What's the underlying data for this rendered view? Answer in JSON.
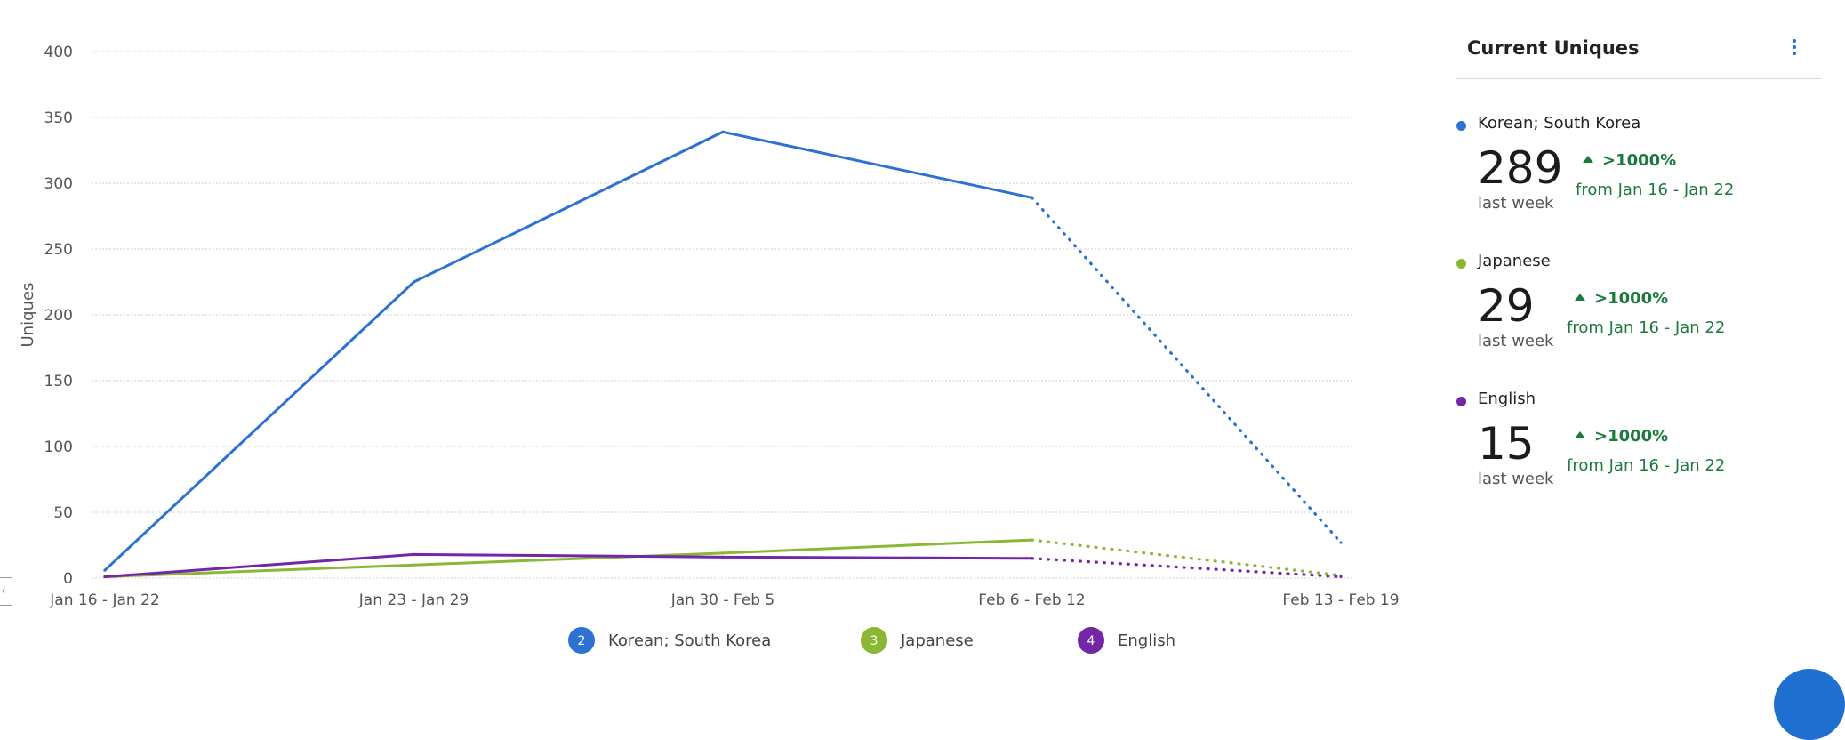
{
  "chart_data": {
    "type": "line",
    "ylabel": "Uniques",
    "ylim": [
      0,
      400
    ],
    "yticks": [
      0,
      50,
      100,
      150,
      200,
      250,
      300,
      350,
      400
    ],
    "categories": [
      "Jan 16 - Jan 22",
      "Jan 23 - Jan 29",
      "Jan 30 - Feb 5",
      "Feb 6 - Feb 12",
      "Feb 13 - Feb 19"
    ],
    "grid": true,
    "legend_position": "bottom",
    "incomplete_last_period": true,
    "series": [
      {
        "name": "Korean; South Korea",
        "legend_number": "2",
        "color": "#2d72d2",
        "values": [
          6,
          225,
          339,
          289,
          27
        ]
      },
      {
        "name": "Japanese",
        "legend_number": "3",
        "color": "#8ab835",
        "values": [
          1,
          10,
          19,
          29,
          2
        ]
      },
      {
        "name": "English",
        "legend_number": "4",
        "color": "#7326a8",
        "values": [
          1,
          18,
          16,
          15,
          1
        ]
      }
    ]
  },
  "panel": {
    "title": "Current Uniques",
    "menu_icon": "vertical-ellipsis-icon",
    "stats": [
      {
        "name": "Korean; South Korea",
        "color": "#2d72d2",
        "value": "289",
        "period": "last week",
        "change": ">1000%",
        "from": "from Jan 16 - Jan 22"
      },
      {
        "name": "Japanese",
        "color": "#8ab835",
        "value": "29",
        "period": "last week",
        "change": ">1000%",
        "from": "from Jan 16 - Jan 22"
      },
      {
        "name": "English",
        "color": "#7326a8",
        "value": "15",
        "period": "last week",
        "change": ">1000%",
        "from": "from Jan 16 - Jan 22"
      }
    ]
  }
}
